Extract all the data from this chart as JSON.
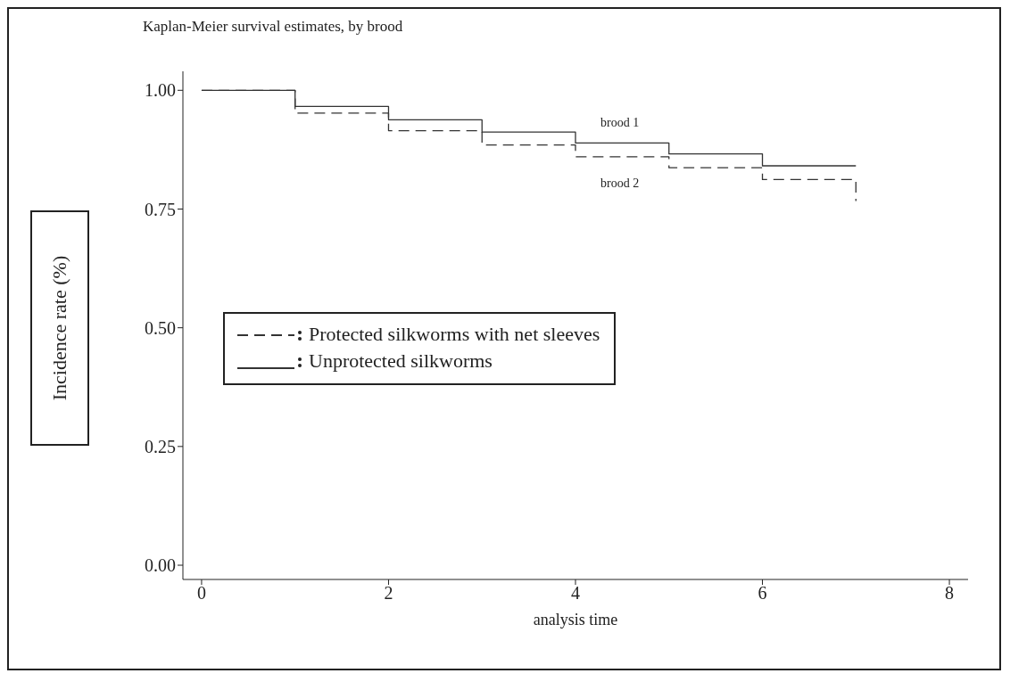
{
  "chart_data": {
    "type": "step",
    "title": "Kaplan-Meier survival estimates, by brood",
    "xlabel": "analysis time",
    "ylabel": "Incidence rate (%)",
    "xlim": [
      -0.2,
      8.2
    ],
    "xticks": [
      0,
      2,
      4,
      6,
      8
    ],
    "ylim": [
      -0.03,
      1.04
    ],
    "yticks": [
      {
        "value": 0,
        "label": "0.00"
      },
      0.25,
      {
        "value": 0.5,
        "label": "0.50"
      },
      0.75,
      {
        "value": 1,
        "label": "1.00"
      }
    ],
    "legend": "left",
    "marker": "none",
    "series": [
      {
        "name": "Protected silkworms with net sleeves",
        "color": "#333333",
        "line_style": "dashed",
        "x": [
          0,
          1,
          2,
          3,
          4,
          5,
          6,
          7
        ],
        "values": [
          1.0,
          0.952,
          0.915,
          0.885,
          0.86,
          0.837,
          0.812,
          0.767
        ]
      },
      {
        "name": "Unprotected silkworms",
        "color": "#333333",
        "line_style": "solid",
        "x": [
          0,
          1,
          2,
          3,
          4,
          5,
          6,
          7
        ],
        "values": [
          1.0,
          0.966,
          0.938,
          0.912,
          0.889,
          0.866,
          0.841,
          0.841
        ]
      }
    ],
    "annotations": [
      "brood 1",
      "brood 2"
    ]
  }
}
